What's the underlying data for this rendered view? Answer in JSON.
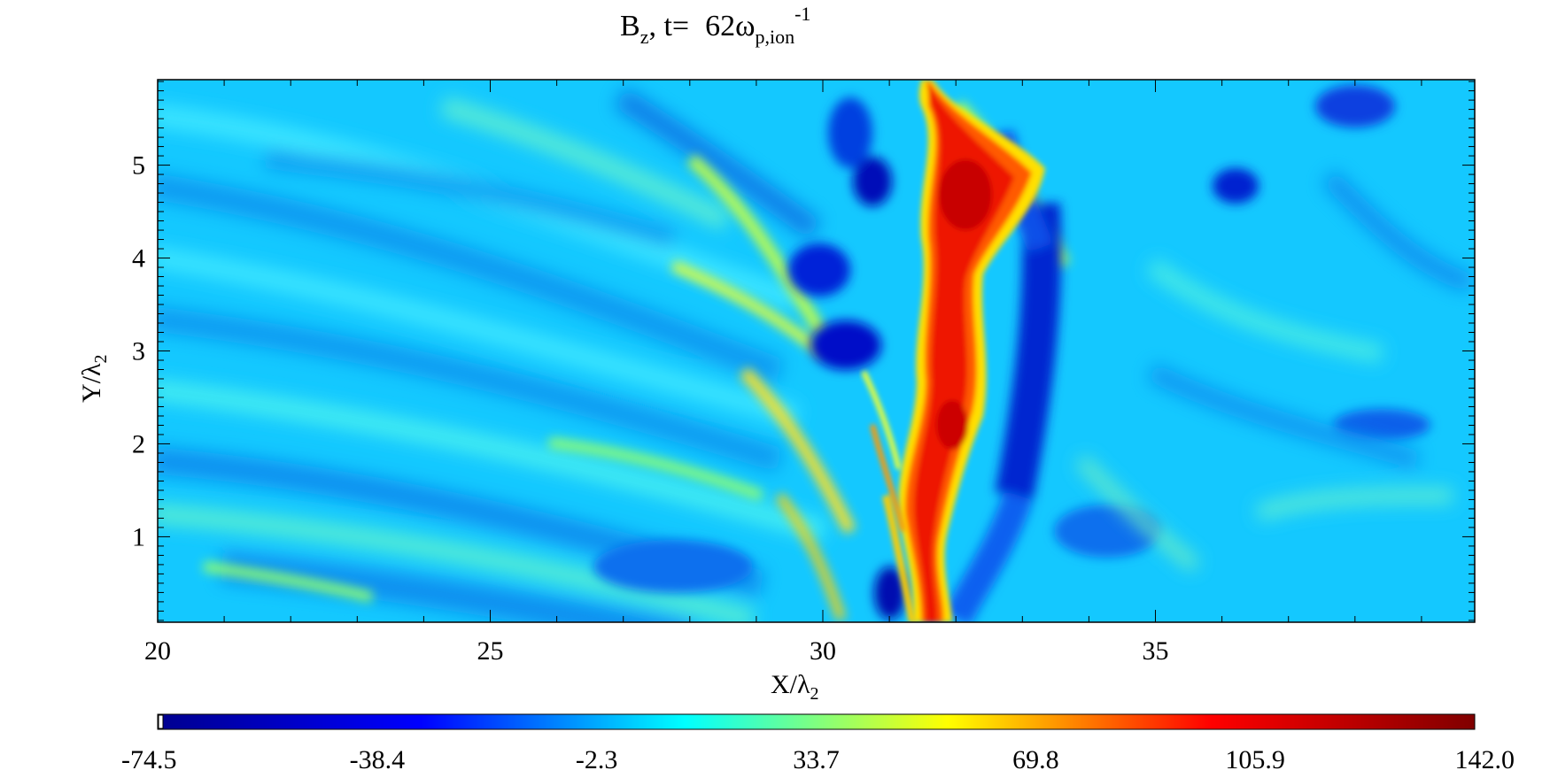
{
  "chart_data": {
    "type": "heatmap",
    "title": {
      "var_main": "B",
      "var_sub": "z",
      "sep": ", t=",
      "time_value": "62",
      "unit_main": "ω",
      "unit_sub": "p,ion",
      "unit_sup": "-1"
    },
    "xlabel": {
      "main": "X/λ",
      "sub": "2"
    },
    "ylabel": {
      "main": "Y/λ",
      "sub": "2"
    },
    "xlim": [
      20,
      39.8
    ],
    "ylim": [
      0.08,
      5.92
    ],
    "xticks": [
      20,
      25,
      30,
      35
    ],
    "xtick_labels": [
      "20",
      "25",
      "30",
      "35"
    ],
    "yticks": [
      1,
      2,
      3,
      4,
      5
    ],
    "ytick_labels": [
      "1",
      "2",
      "3",
      "4",
      "5"
    ],
    "colorbar": {
      "min": -74.5,
      "max": 142.0,
      "tick_labels": [
        "-74.5",
        "-38.4",
        "-2.3",
        "33.7",
        "69.8",
        "105.9",
        "142.0"
      ],
      "colormap": [
        "#00008f",
        "#0000ff",
        "#00ffff",
        "#ffff00",
        "#ff0000",
        "#800000"
      ]
    },
    "features": [
      {
        "kind": "current-sheet-ridge",
        "value": 135,
        "path_xy": [
          [
            31.55,
            0.1
          ],
          [
            31.6,
            0.6
          ],
          [
            31.5,
            1.2
          ],
          [
            31.7,
            2.0
          ],
          [
            31.8,
            2.5
          ],
          [
            31.6,
            3.0
          ],
          [
            31.7,
            3.6
          ],
          [
            31.6,
            4.3
          ],
          [
            31.8,
            4.8
          ],
          [
            31.6,
            5.5
          ],
          [
            31.3,
            5.9
          ]
        ]
      },
      {
        "kind": "negative-trough",
        "value": -55,
        "path_xy": [
          [
            33.2,
            0.7
          ],
          [
            33.0,
            1.5
          ],
          [
            33.2,
            2.5
          ],
          [
            33.3,
            3.3
          ],
          [
            33.4,
            4.2
          ],
          [
            33.2,
            4.6
          ]
        ]
      },
      {
        "kind": "negative-blob",
        "value": -60,
        "center_xy": [
          30.0,
          3.1
        ]
      },
      {
        "kind": "negative-blob",
        "value": -60,
        "center_xy": [
          29.8,
          3.8
        ]
      },
      {
        "kind": "negative-blob",
        "value": -55,
        "center_xy": [
          30.8,
          4.8
        ]
      },
      {
        "kind": "negative-blob",
        "value": -60,
        "center_xy": [
          30.9,
          0.3
        ]
      },
      {
        "kind": "negative-blob",
        "value": -45,
        "center_xy": [
          35.8,
          4.8
        ]
      },
      {
        "kind": "negative-blob",
        "value": -40,
        "center_xy": [
          38.5,
          5.6
        ]
      }
    ]
  }
}
